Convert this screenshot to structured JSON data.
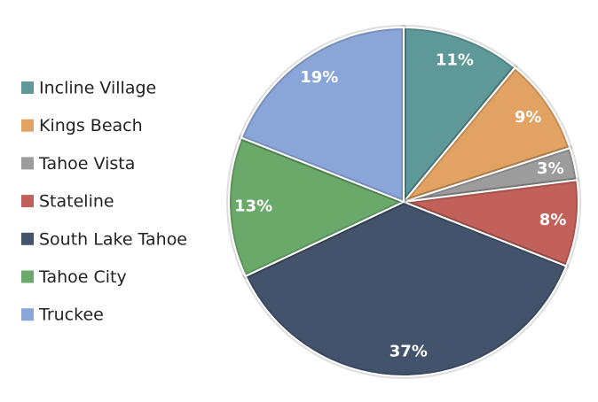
{
  "chart_data": {
    "type": "pie",
    "categories": [
      "Incline Village",
      "Kings Beach",
      "Tahoe Vista",
      "Stateline",
      "South Lake Tahoe",
      "Tahoe City",
      "Truckee"
    ],
    "values": [
      11,
      9,
      3,
      8,
      37,
      13,
      19
    ],
    "value_labels": [
      "11%",
      "9%",
      "3%",
      "8%",
      "37%",
      "13%",
      "19%"
    ],
    "colors": [
      "#5f9899",
      "#e2a263",
      "#9c9c9c",
      "#c2605a",
      "#43536c",
      "#6aa96a",
      "#8aa5d8"
    ],
    "legend": "left"
  }
}
